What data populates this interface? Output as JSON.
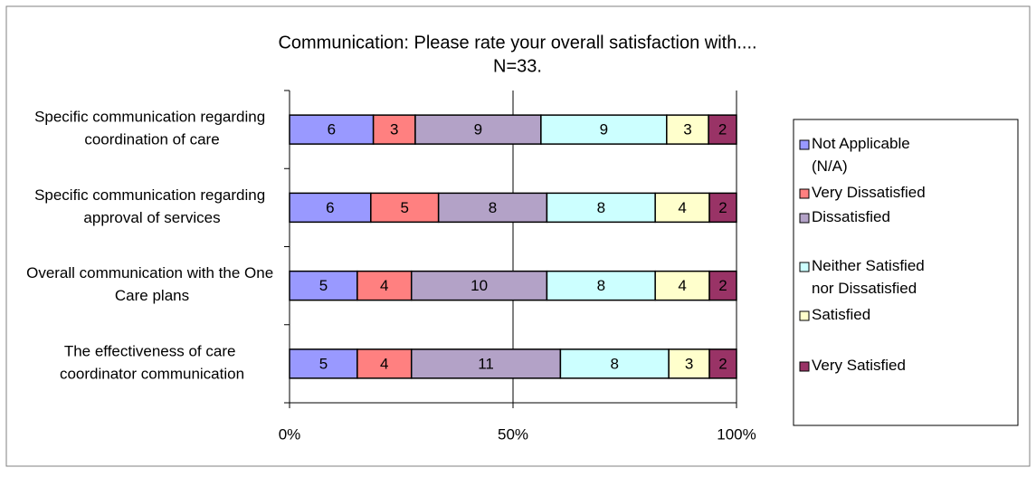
{
  "chart_data": {
    "type": "bar",
    "orientation": "horizontal",
    "stacked": "percent",
    "title": "Communication: Please rate your overall satisfaction with....",
    "subtitle": "N=33.",
    "categories": [
      "Specific communication regarding coordination of care",
      "Specific communication regarding approval of services",
      "Overall communication with the One Care plans",
      "The effectiveness of care coordinator communication"
    ],
    "series": [
      {
        "name": "Not Applicable (N/A)",
        "color": "#9999ff",
        "values": [
          6,
          6,
          5,
          5
        ]
      },
      {
        "name": "Very Dissatisfied",
        "color": "#ff8080",
        "values": [
          3,
          5,
          4,
          4
        ]
      },
      {
        "name": "Dissatisfied",
        "color": "#b3a2c7",
        "values": [
          9,
          8,
          10,
          11
        ]
      },
      {
        "name": "Neither Satisfied nor Dissatisfied",
        "color": "#ccffff",
        "values": [
          9,
          8,
          8,
          8
        ]
      },
      {
        "name": "Satisfied",
        "color": "#ffffcc",
        "values": [
          3,
          4,
          4,
          3
        ]
      },
      {
        "name": "Very Satisfied",
        "color": "#993366",
        "values": [
          2,
          2,
          2,
          2
        ]
      }
    ],
    "xlim": [
      0,
      100
    ],
    "xticks": [
      {
        "value": 0,
        "label": "0%"
      },
      {
        "value": 50,
        "label": "50%"
      },
      {
        "value": 100,
        "label": "100%"
      }
    ],
    "grid": true,
    "legend": "right"
  }
}
